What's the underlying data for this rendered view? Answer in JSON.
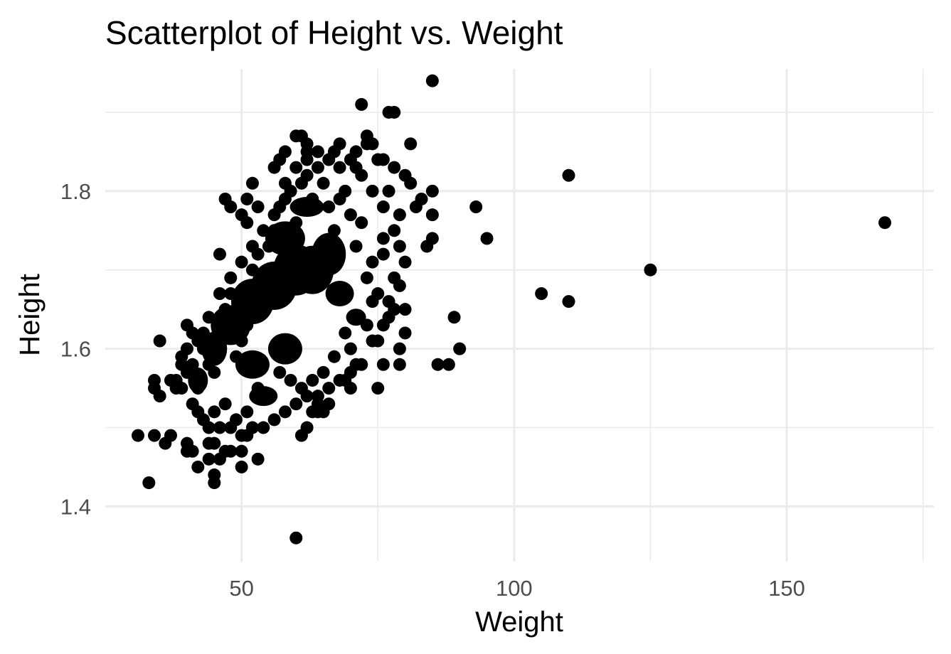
{
  "chart_data": {
    "type": "scatter",
    "title": "Scatterplot of Height vs. Weight",
    "xlabel": "Weight",
    "ylabel": "Height",
    "xlim": [
      25,
      177
    ],
    "ylim": [
      1.33,
      1.955
    ],
    "x_ticks": [
      50,
      100,
      150
    ],
    "x_tick_labels": [
      "50",
      "100",
      "150"
    ],
    "x_minor_ticks": [
      75,
      125,
      175
    ],
    "y_ticks": [
      1.4,
      1.6,
      1.8
    ],
    "y_tick_labels": [
      "1.4",
      "1.6",
      "1.8"
    ],
    "y_minor_ticks": [
      1.5,
      1.7,
      1.9
    ],
    "grid": true,
    "legend": "none",
    "point_color": "#000000",
    "grid_color": "#ebebeb",
    "series": [
      {
        "points": [
          [
            31,
            1.49
          ],
          [
            33,
            1.43
          ],
          [
            34,
            1.55
          ],
          [
            34,
            1.56
          ],
          [
            35,
            1.61
          ],
          [
            35,
            1.54
          ],
          [
            34,
            1.49
          ],
          [
            36,
            1.48
          ],
          [
            37,
            1.49
          ],
          [
            37,
            1.56
          ],
          [
            38,
            1.55
          ],
          [
            39,
            1.58
          ],
          [
            40,
            1.63
          ],
          [
            40,
            1.48
          ],
          [
            40,
            1.47
          ],
          [
            41,
            1.47
          ],
          [
            41,
            1.62
          ],
          [
            42,
            1.45
          ],
          [
            42,
            1.55
          ],
          [
            43,
            1.62
          ],
          [
            44,
            1.46
          ],
          [
            44,
            1.48
          ],
          [
            45,
            1.43
          ],
          [
            45,
            1.44
          ],
          [
            45,
            1.48
          ],
          [
            46,
            1.46
          ],
          [
            47,
            1.79
          ],
          [
            48,
            1.78
          ],
          [
            46,
            1.72
          ],
          [
            47,
            1.47
          ],
          [
            48,
            1.47
          ],
          [
            50,
            1.45
          ],
          [
            50,
            1.47
          ],
          [
            51,
            1.49
          ],
          [
            53,
            1.46
          ],
          [
            50,
            1.77
          ],
          [
            51,
            1.76
          ],
          [
            51,
            1.79
          ],
          [
            52,
            1.81
          ],
          [
            53,
            1.78
          ],
          [
            56,
            1.83
          ],
          [
            57,
            1.84
          ],
          [
            58,
            1.85
          ],
          [
            60,
            1.87
          ],
          [
            61,
            1.87
          ],
          [
            62,
            1.86
          ],
          [
            62,
            1.84
          ],
          [
            60,
            1.36
          ],
          [
            61,
            1.49
          ],
          [
            62,
            1.5
          ],
          [
            63,
            1.52
          ],
          [
            64,
            1.53
          ],
          [
            64,
            1.52
          ],
          [
            65,
            1.52
          ],
          [
            66,
            1.53
          ],
          [
            67,
            1.85
          ],
          [
            68,
            1.86
          ],
          [
            69,
            1.56
          ],
          [
            70,
            1.55
          ],
          [
            71,
            1.85
          ],
          [
            72,
            1.91
          ],
          [
            73,
            1.87
          ],
          [
            74,
            1.86
          ],
          [
            75,
            1.55
          ],
          [
            76,
            1.58
          ],
          [
            76,
            1.84
          ],
          [
            77,
            1.9
          ],
          [
            78,
            1.9
          ],
          [
            79,
            1.58
          ],
          [
            79,
            1.6
          ],
          [
            80,
            1.62
          ],
          [
            80,
            1.65
          ],
          [
            81,
            1.81
          ],
          [
            81,
            1.86
          ],
          [
            82,
            1.78
          ],
          [
            83,
            1.79
          ],
          [
            84,
            1.73
          ],
          [
            85,
            1.74
          ],
          [
            85,
            1.77
          ],
          [
            85,
            1.8
          ],
          [
            85,
            1.94
          ],
          [
            86,
            1.58
          ],
          [
            88,
            1.58
          ],
          [
            89,
            1.64
          ],
          [
            90,
            1.6
          ],
          [
            93,
            1.78
          ],
          [
            95,
            1.74
          ],
          [
            105,
            1.67
          ],
          [
            110,
            1.66
          ],
          [
            110,
            1.82
          ],
          [
            125,
            1.7
          ],
          [
            168,
            1.76
          ]
        ]
      }
    ]
  }
}
